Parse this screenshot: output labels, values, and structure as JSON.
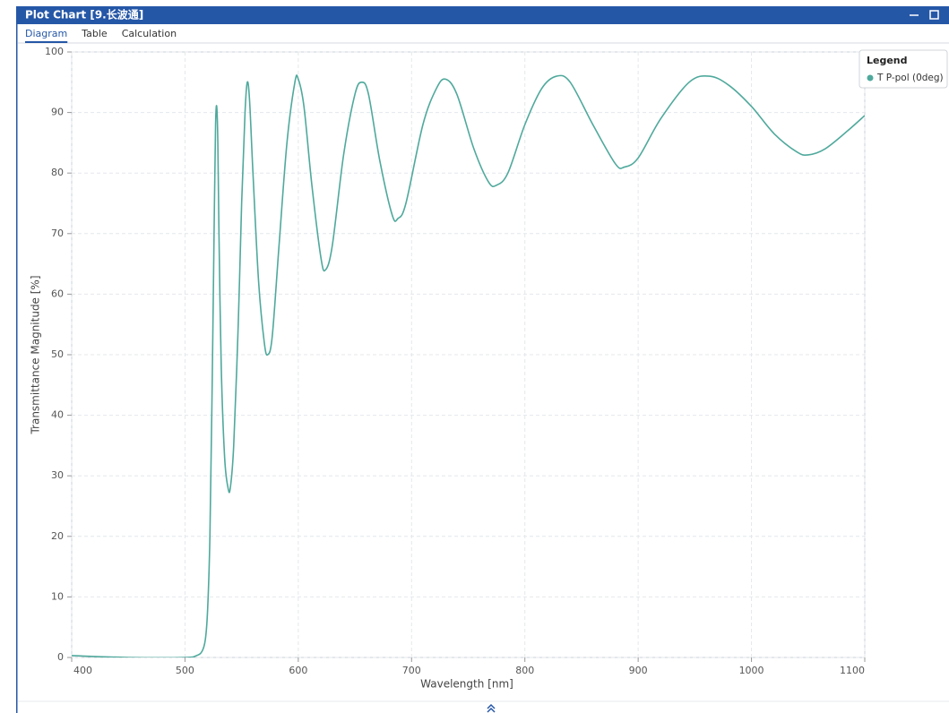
{
  "window": {
    "title": "Plot Chart [9.长波通]"
  },
  "tabs": [
    "Diagram",
    "Table",
    "Calculation"
  ],
  "active_tab": 0,
  "chart_data": {
    "type": "line",
    "x_label": "Wavelength [nm]",
    "y_label": "Transmittance Magnitude [%]",
    "legend_title": "Legend",
    "legend_position": "upper-right",
    "grid": true,
    "xlim": [
      400,
      1100
    ],
    "ylim": [
      0,
      100
    ],
    "xticks": [
      400,
      500,
      600,
      700,
      800,
      900,
      1000,
      1100
    ],
    "yticks": [
      0,
      10,
      20,
      30,
      40,
      50,
      60,
      70,
      80,
      90,
      100
    ],
    "x": [
      400,
      450,
      500,
      510,
      515,
      518,
      520,
      522,
      524,
      526,
      527,
      528,
      529,
      530,
      532,
      535,
      538,
      540,
      543,
      547,
      550,
      553,
      555,
      557,
      560,
      565,
      570,
      573,
      577,
      583,
      590,
      597,
      600,
      605,
      612,
      620,
      624,
      630,
      640,
      650,
      656,
      662,
      672,
      683,
      688,
      695,
      710,
      722,
      730,
      740,
      755,
      768,
      775,
      785,
      800,
      815,
      828,
      840,
      860,
      880,
      888,
      900,
      920,
      945,
      963,
      980,
      1000,
      1020,
      1040,
      1050,
      1065,
      1085,
      1100
    ],
    "series": [
      {
        "name": "T P-pol (0deg)",
        "color": "#4fa99c",
        "values": [
          0.3,
          0,
          0,
          0.3,
          1,
          3,
          8,
          20,
          45,
          75,
          88,
          91,
          85,
          70,
          48,
          33,
          28,
          28,
          35,
          55,
          75,
          90,
          95,
          92,
          80,
          62,
          52,
          50,
          53,
          68,
          85,
          95,
          95.5,
          91,
          78,
          66,
          64,
          68,
          83,
          93,
          95,
          93,
          82,
          73,
          72.5,
          75,
          88,
          94,
          95.5,
          93,
          84,
          78.5,
          78,
          80,
          88,
          94,
          96,
          95,
          88,
          81.5,
          81,
          82.5,
          89,
          95,
          96,
          94.5,
          91,
          86.5,
          83.5,
          83,
          84,
          87,
          89.5
        ]
      }
    ]
  }
}
